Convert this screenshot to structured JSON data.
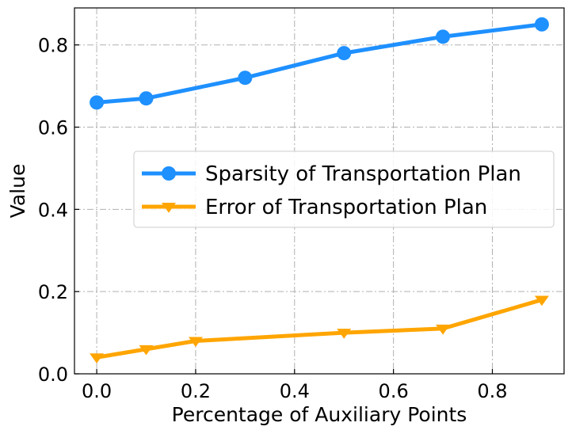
{
  "chart_data": {
    "type": "line",
    "xlabel": "Percentage of Auxiliary Points",
    "ylabel": "Value",
    "xlim": [
      -0.045,
      0.945
    ],
    "ylim": [
      0.0,
      0.89
    ],
    "xticks": [
      0.0,
      0.2,
      0.4,
      0.6,
      0.8
    ],
    "xtick_labels": [
      "0.0",
      "0.2",
      "0.4",
      "0.6",
      "0.8"
    ],
    "yticks": [
      0.0,
      0.2,
      0.4,
      0.6,
      0.8
    ],
    "ytick_labels": [
      "0.0",
      "0.2",
      "0.4",
      "0.6",
      "0.8"
    ],
    "grid": true,
    "legend_position": "center-right",
    "x": [
      0.0,
      0.1,
      0.2,
      0.3,
      0.5,
      0.7,
      0.9
    ],
    "series": [
      {
        "name": "Sparsity of Transportation Plan",
        "color": "#1e90ff",
        "marker": "circle",
        "points": [
          [
            0.0,
            0.66
          ],
          [
            0.1,
            0.67
          ],
          [
            0.3,
            0.72
          ],
          [
            0.5,
            0.78
          ],
          [
            0.7,
            0.82
          ],
          [
            0.9,
            0.85
          ]
        ]
      },
      {
        "name": "Error of Transportation Plan",
        "color": "#ffa500",
        "marker": "triangle-down",
        "points": [
          [
            0.0,
            0.04
          ],
          [
            0.1,
            0.06
          ],
          [
            0.2,
            0.08
          ],
          [
            0.5,
            0.1
          ],
          [
            0.7,
            0.11
          ],
          [
            0.9,
            0.18
          ]
        ]
      }
    ]
  }
}
